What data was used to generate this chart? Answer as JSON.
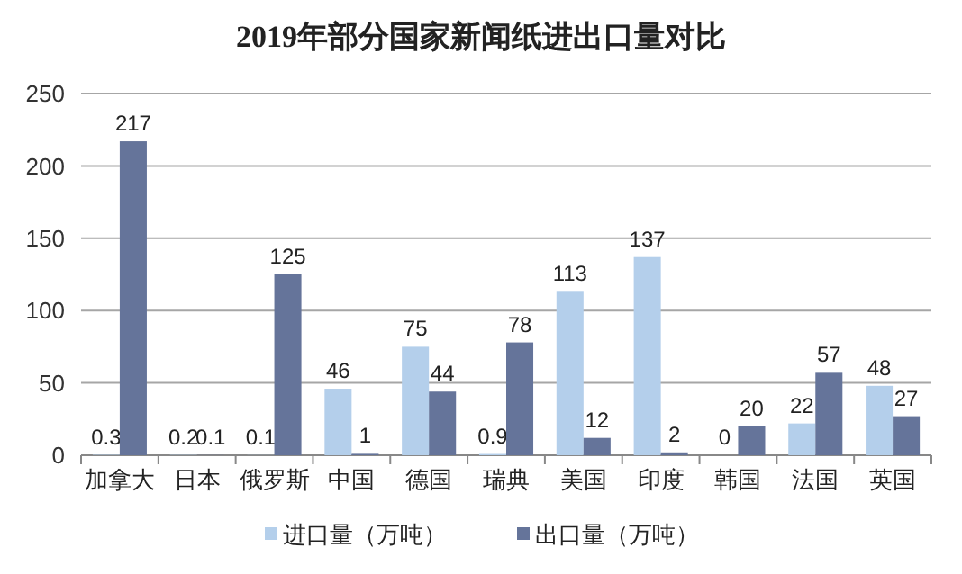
{
  "chart_data": {
    "type": "bar",
    "title": "2019年部分国家新闻纸进出口量对比",
    "categories": [
      "加拿大",
      "日本",
      "俄罗斯",
      "中国",
      "德国",
      "瑞典",
      "美国",
      "印度",
      "韩国",
      "法国",
      "英国"
    ],
    "series": [
      {
        "name": "进口量（万吨）",
        "color": "#b4cfeb",
        "values": [
          0.3,
          0.2,
          0.1,
          46,
          75,
          0.9,
          113,
          137,
          0,
          22,
          48
        ]
      },
      {
        "name": "出口量（万吨）",
        "color": "#65749a",
        "values": [
          217,
          0.1,
          125,
          1,
          44,
          78,
          12,
          2,
          20,
          57,
          27
        ]
      }
    ],
    "ylim": [
      0,
      250
    ],
    "yticks": [
      0,
      50,
      100,
      150,
      200,
      250
    ],
    "grid": "y",
    "legend": "bottom",
    "data_labels": true
  }
}
